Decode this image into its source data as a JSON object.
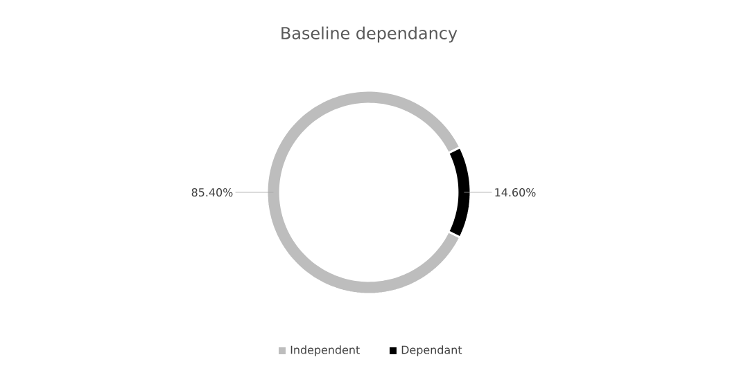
{
  "chart_data": {
    "type": "donut",
    "title": "Baseline dependancy",
    "categories": [
      "Independent",
      "Dependant"
    ],
    "values": [
      85.4,
      14.6
    ],
    "value_labels": [
      "85.40%",
      "14.60%"
    ],
    "colors": [
      "#bdbdbd",
      "#000000"
    ],
    "legend": "bottom"
  }
}
